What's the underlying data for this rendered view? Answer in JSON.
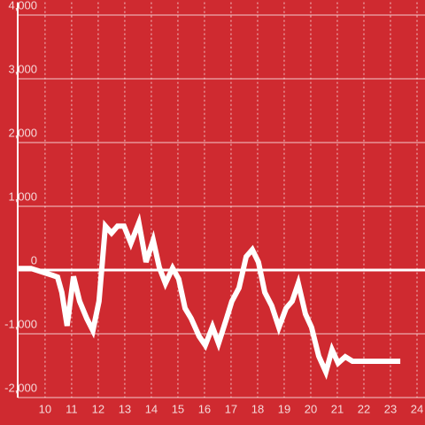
{
  "chart_data": {
    "type": "line",
    "x": [
      9.0,
      9.47,
      10.3,
      10.47,
      10.63,
      10.83,
      11.07,
      11.3,
      11.57,
      11.8,
      12.03,
      12.27,
      12.5,
      12.73,
      12.97,
      13.23,
      13.53,
      13.8,
      14.07,
      14.3,
      14.53,
      14.8,
      15.03,
      15.27,
      15.5,
      15.8,
      16.03,
      16.3,
      16.53,
      16.83,
      17.03,
      17.3,
      17.57,
      17.8,
      18.03,
      18.27,
      18.53,
      18.8,
      19.07,
      19.3,
      19.53,
      19.8,
      20.03,
      20.3,
      20.57,
      20.8,
      21.03,
      21.3,
      21.57,
      23.37
    ],
    "series": [
      {
        "color": "#ffffff",
        "values": [
          25,
          25,
          -85,
          -110,
          -350,
          -875,
          -100,
          -490,
          -760,
          -950,
          -490,
          690,
          580,
          690,
          690,
          420,
          740,
          125,
          470,
          40,
          -210,
          30,
          -140,
          -600,
          -760,
          -1040,
          -1180,
          -890,
          -1150,
          -760,
          -490,
          -280,
          210,
          320,
          125,
          -350,
          -560,
          -900,
          -600,
          -490,
          -210,
          -690,
          -900,
          -1350,
          -1600,
          -1250,
          -1460,
          -1360,
          -1430,
          -1430
        ]
      }
    ],
    "xlim": [
      8.97,
      24.3
    ],
    "xticks": [
      10,
      11,
      12,
      13,
      14,
      15,
      16,
      17,
      18,
      19,
      20,
      21,
      22,
      23,
      24
    ],
    "ylim": [
      -2000,
      4200
    ],
    "yticks": [
      {
        "value": -2000,
        "label": "-2,000"
      },
      {
        "value": -1000,
        "label": "-1,000"
      },
      0,
      {
        "value": 1000,
        "label": "1,000"
      },
      {
        "value": 2000,
        "label": "2,000"
      },
      {
        "value": 3000,
        "label": "3,000"
      },
      {
        "value": 4000,
        "label": "4,000"
      }
    ],
    "grid": true
  }
}
